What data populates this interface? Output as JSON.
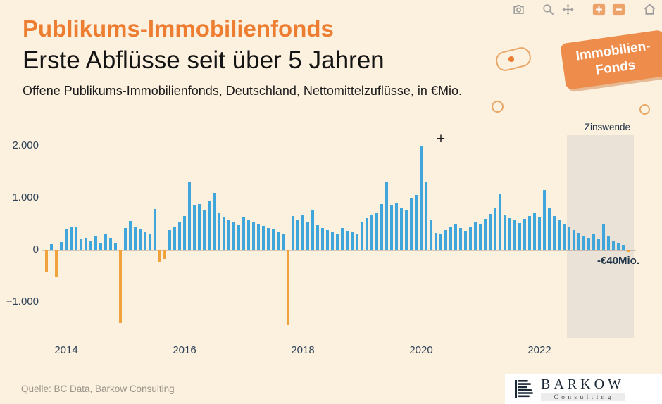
{
  "toolbar": {
    "icons": [
      "camera-icon",
      "zoom-icon",
      "pan-icon",
      "zoom-in-icon",
      "zoom-out-icon",
      "home-icon"
    ]
  },
  "badge": {
    "line1": "Immobilien-",
    "line2": "Fonds"
  },
  "logo": {
    "name": "BARKOW",
    "subtitle": "C o n s u l t i n g"
  },
  "chart_data": {
    "type": "bar",
    "title": "Publikums-Immobilienfonds",
    "subtitle": "Erste Abflüsse seit über 5 Jahren",
    "description": "Offene Publikums-Immobilienfonds, Deutschland, Nettomittelzuflüsse, in €Mio.",
    "source": "Quelle: BC Data, Barkow Consulting",
    "xlabel": "",
    "ylabel": "Nettomittelzuflüsse in €Mio.",
    "ylim": [
      -1690,
      2200
    ],
    "grid": false,
    "colors": {
      "positive": "#3fa5da",
      "negative": "#f0a33c",
      "region": "rgba(145,155,165,0.16)",
      "background": "#fcf0df",
      "accent": "#ed7d31"
    },
    "months": [
      "2013-09",
      "2013-10",
      "2013-11",
      "2013-12",
      "2014-01",
      "2014-02",
      "2014-03",
      "2014-04",
      "2014-05",
      "2014-06",
      "2014-07",
      "2014-08",
      "2014-09",
      "2014-10",
      "2014-11",
      "2014-12",
      "2015-01",
      "2015-02",
      "2015-03",
      "2015-04",
      "2015-05",
      "2015-06",
      "2015-07",
      "2015-08",
      "2015-09",
      "2015-10",
      "2015-11",
      "2015-12",
      "2016-01",
      "2016-02",
      "2016-03",
      "2016-04",
      "2016-05",
      "2016-06",
      "2016-07",
      "2016-08",
      "2016-09",
      "2016-10",
      "2016-11",
      "2016-12",
      "2017-01",
      "2017-02",
      "2017-03",
      "2017-04",
      "2017-05",
      "2017-06",
      "2017-07",
      "2017-08",
      "2017-09",
      "2017-10",
      "2017-11",
      "2017-12",
      "2018-01",
      "2018-02",
      "2018-03",
      "2018-04",
      "2018-05",
      "2018-06",
      "2018-07",
      "2018-08",
      "2018-09",
      "2018-10",
      "2018-11",
      "2018-12",
      "2019-01",
      "2019-02",
      "2019-03",
      "2019-04",
      "2019-05",
      "2019-06",
      "2019-07",
      "2019-08",
      "2019-09",
      "2019-10",
      "2019-11",
      "2019-12",
      "2020-01",
      "2020-02",
      "2020-03",
      "2020-04",
      "2020-05",
      "2020-06",
      "2020-07",
      "2020-08",
      "2020-09",
      "2020-10",
      "2020-11",
      "2020-12",
      "2021-01",
      "2021-02",
      "2021-03",
      "2021-04",
      "2021-05",
      "2021-06",
      "2021-07",
      "2021-08",
      "2021-09",
      "2021-10",
      "2021-11",
      "2021-12",
      "2022-01",
      "2022-02",
      "2022-03",
      "2022-04",
      "2022-05",
      "2022-06",
      "2022-07",
      "2022-08",
      "2022-09",
      "2022-10",
      "2022-11",
      "2022-12",
      "2023-01",
      "2023-02",
      "2023-03",
      "2023-04",
      "2023-05",
      "2023-06",
      "2023-07"
    ],
    "values": [
      -430,
      120,
      -520,
      150,
      400,
      450,
      430,
      200,
      230,
      180,
      260,
      130,
      300,
      230,
      140,
      -1400,
      420,
      550,
      450,
      400,
      350,
      300,
      780,
      -230,
      -180,
      380,
      450,
      520,
      640,
      1310,
      860,
      880,
      760,
      950,
      1090,
      700,
      620,
      560,
      520,
      480,
      620,
      580,
      540,
      500,
      460,
      420,
      390,
      350,
      310,
      -1450,
      640,
      580,
      660,
      520,
      750,
      480,
      420,
      380,
      330,
      300,
      420,
      360,
      330,
      300,
      520,
      600,
      660,
      720,
      880,
      1310,
      860,
      910,
      810,
      760,
      980,
      1050,
      1980,
      1300,
      560,
      320,
      290,
      380,
      450,
      500,
      420,
      360,
      450,
      540,
      500,
      590,
      690,
      790,
      1060,
      660,
      610,
      560,
      510,
      590,
      650,
      700,
      620,
      1150,
      800,
      650,
      560,
      500,
      440,
      380,
      320,
      270,
      230,
      290,
      210,
      500,
      260,
      180,
      130,
      90,
      -40
    ],
    "y_ticks": [
      {
        "value": 2000,
        "label": "2.000"
      },
      {
        "value": 1000,
        "label": "1.000"
      },
      {
        "value": 0,
        "label": "0"
      },
      {
        "value": -1000,
        "label": "−1.000"
      }
    ],
    "x_ticks": [
      {
        "month": "2014-01",
        "label": "2014"
      },
      {
        "month": "2016-01",
        "label": "2016"
      },
      {
        "month": "2018-01",
        "label": "2018"
      },
      {
        "month": "2020-01",
        "label": "2020"
      },
      {
        "month": "2022-01",
        "label": "2022"
      }
    ],
    "annotations": [
      {
        "kind": "marker",
        "text": "+",
        "month": "2020-05",
        "value": 2130
      },
      {
        "kind": "label",
        "text": "-€40Mio.",
        "month": "2023-05",
        "value": -240
      }
    ],
    "shaded_region": {
      "from": "2022-07",
      "to": "2023-07",
      "label": "Zinswende"
    }
  }
}
